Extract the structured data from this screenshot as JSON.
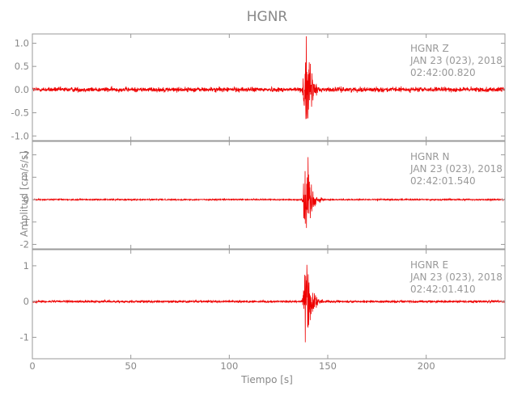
{
  "chart_data": {
    "type": "line",
    "title": "HGNR",
    "xlabel": "Tiempo [s]",
    "ylabel": "Amplitud [cm/s/s]",
    "xlim": [
      0,
      240
    ],
    "x_ticks": [
      "0",
      "50",
      "100",
      "150",
      "200"
    ],
    "x_tick_values": [
      0,
      50,
      100,
      150,
      200
    ],
    "grid": false,
    "series_color": "#ee0000",
    "panels": [
      {
        "component": "HGNR   Z",
        "date": "JAN 23 (023), 2018",
        "time": "02:42:00.820",
        "ylim": [
          -1.1,
          1.2
        ],
        "y_ticks": [
          "-1.0",
          "-0.5",
          "0.0",
          "0.5",
          "1.0"
        ],
        "y_tick_values": [
          -1.0,
          -0.5,
          0.0,
          0.5,
          1.0
        ],
        "event_onset": 137,
        "event_peak_time": 139,
        "peak_max": 1.15,
        "peak_min": -1.0,
        "noise_level": 0.05
      },
      {
        "component": "HGNR   N",
        "date": "JAN 23 (023), 2018",
        "time": "02:42:01.540",
        "ylim": [
          -2.2,
          2.6
        ],
        "y_ticks": [
          "-2",
          "-1",
          "0",
          "1",
          "2"
        ],
        "y_tick_values": [
          -2,
          -1,
          0,
          1,
          2
        ],
        "event_onset": 137,
        "event_peak_time": 139,
        "peak_max": 2.4,
        "peak_min": -1.9,
        "noise_level": 0.03
      },
      {
        "component": "HGNR   E",
        "date": "JAN 23 (023), 2018",
        "time": "02:42:01.410",
        "ylim": [
          -1.6,
          1.45
        ],
        "y_ticks": [
          "-1",
          "0",
          "1"
        ],
        "y_tick_values": [
          -1,
          0,
          1
        ],
        "event_onset": 137,
        "event_peak_time": 139,
        "peak_max": 1.4,
        "peak_min": -1.55,
        "noise_level": 0.03
      }
    ]
  }
}
